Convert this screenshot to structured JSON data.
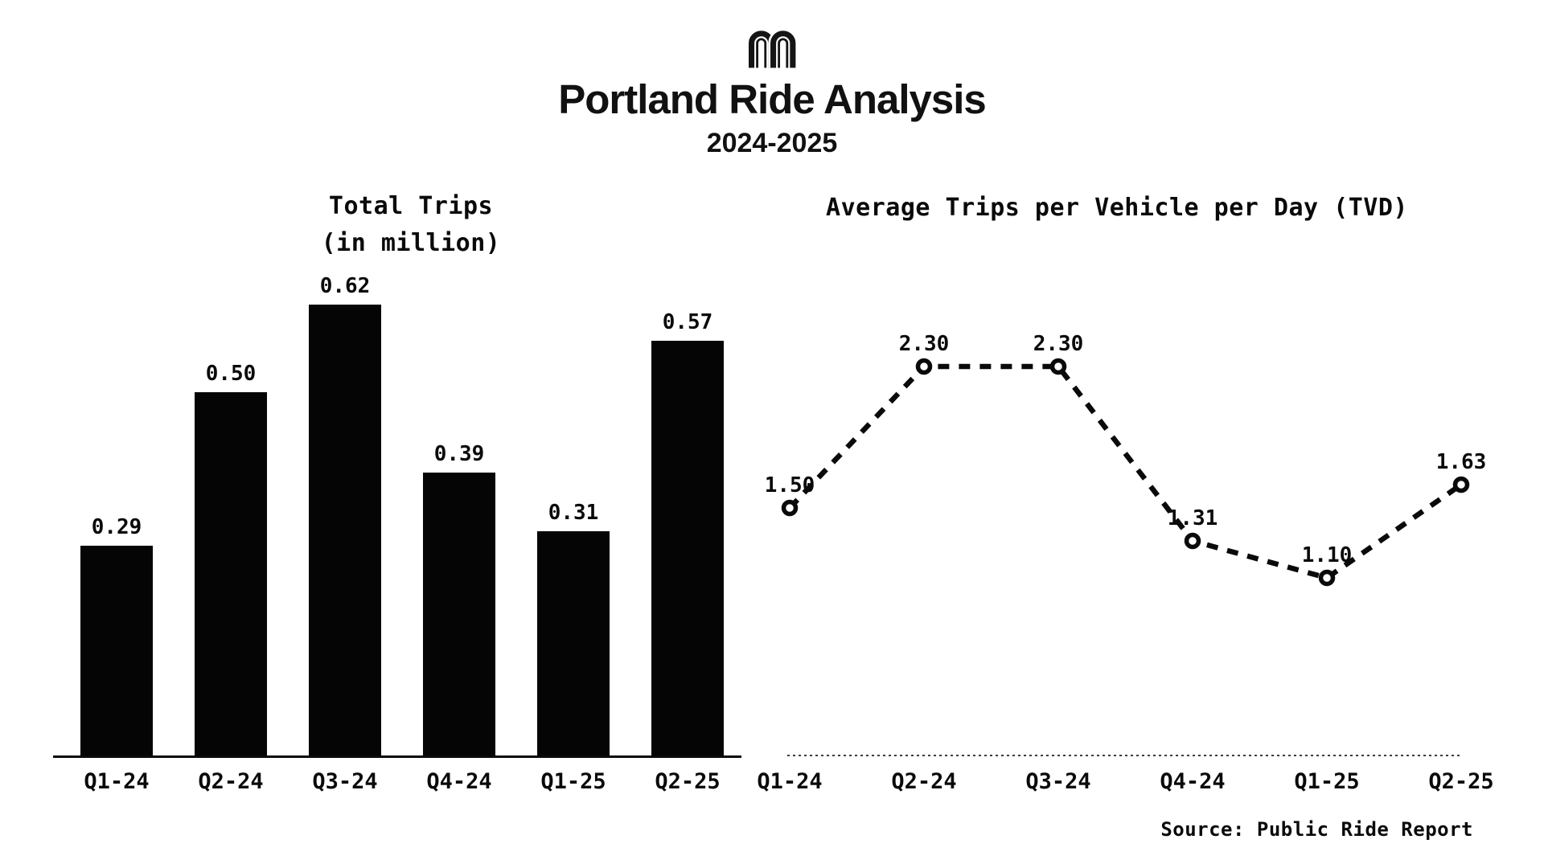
{
  "header": {
    "logo_icon": "double-arch-m-logo",
    "title": "Portland Ride Analysis",
    "subtitle": "2024-2025"
  },
  "footer": {
    "source": "Source: Public Ride Report"
  },
  "colors": {
    "ink": "#0a0a0a",
    "background": "#ffffff"
  },
  "chart_data": [
    {
      "type": "bar",
      "title": "Total Trips",
      "title_line2": "(in million)",
      "categories": [
        "Q1-24",
        "Q2-24",
        "Q3-24",
        "Q4-24",
        "Q1-25",
        "Q2-25"
      ],
      "values": [
        0.29,
        0.5,
        0.62,
        0.39,
        0.31,
        0.57
      ],
      "value_labels": [
        "0.29",
        "0.50",
        "0.62",
        "0.39",
        "0.31",
        "0.57"
      ],
      "xlabel": "",
      "ylabel": "",
      "ylim": [
        0,
        0.68
      ],
      "grid": false,
      "bar_color": "#050505",
      "legend": "none"
    },
    {
      "type": "line",
      "title": "Average Trips per Vehicle per Day (TVD)",
      "categories": [
        "Q1-24",
        "Q2-24",
        "Q3-24",
        "Q4-24",
        "Q1-25",
        "Q2-25"
      ],
      "values": [
        1.5,
        2.3,
        2.3,
        1.31,
        1.1,
        1.63
      ],
      "value_labels": [
        "1.50",
        "2.30",
        "2.30",
        "1.31",
        "1.10",
        "1.63"
      ],
      "xlabel": "",
      "ylabel": "",
      "ylim": [
        0,
        2.6
      ],
      "grid": false,
      "line_style": "dashed",
      "marker": "open-circle",
      "line_color": "#0a0a0a",
      "legend": "none"
    }
  ]
}
